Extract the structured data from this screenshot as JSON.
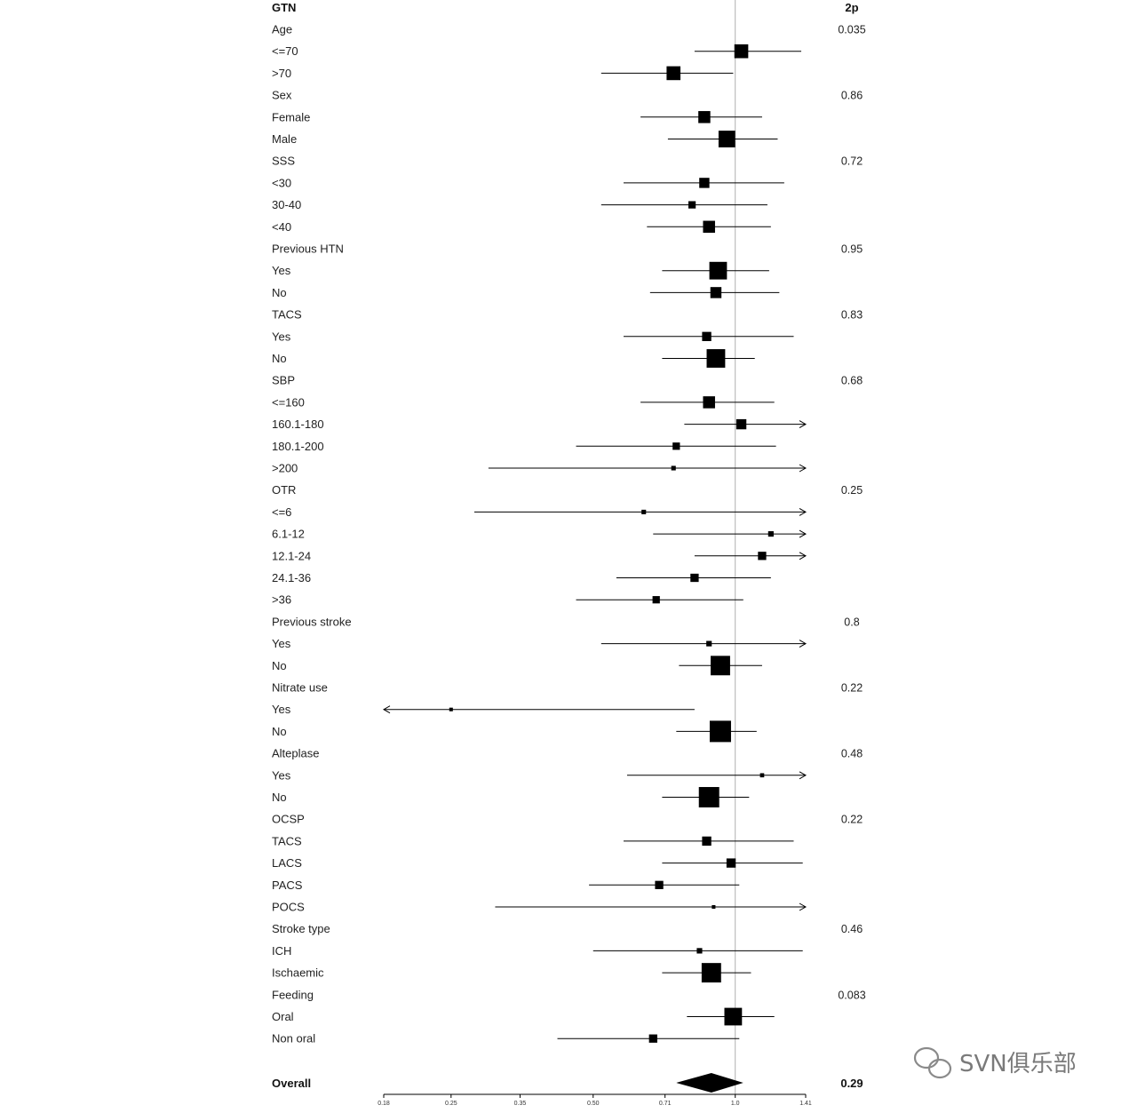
{
  "chart_data": {
    "type": "forest",
    "header": {
      "label": "GTN",
      "pvalue": "2p"
    },
    "x_axis": {
      "scale": "log",
      "ticks": [
        "0.18",
        "0.25",
        "0.35",
        "0.50",
        "0.71",
        "1.0",
        "1.41"
      ],
      "xlim": [
        0.18,
        1.41
      ],
      "reference_line": 1.0
    },
    "rows": [
      {
        "label": "Age",
        "kind": "group",
        "p": "0.035"
      },
      {
        "label": "<=70",
        "kind": "item",
        "est": 1.03,
        "lo": 0.82,
        "hi": 1.38,
        "w": 0.6
      },
      {
        "label": ">70",
        "kind": "item",
        "est": 0.74,
        "lo": 0.52,
        "hi": 0.99,
        "w": 0.6
      },
      {
        "label": "Sex",
        "kind": "group",
        "p": "0.86"
      },
      {
        "label": "Female",
        "kind": "item",
        "est": 0.86,
        "lo": 0.63,
        "hi": 1.14,
        "w": 0.5
      },
      {
        "label": "Male",
        "kind": "item",
        "est": 0.96,
        "lo": 0.72,
        "hi": 1.23,
        "w": 0.75
      },
      {
        "label": "SSS",
        "kind": "group",
        "p": "0.72"
      },
      {
        "label": "<30",
        "kind": "item",
        "est": 0.86,
        "lo": 0.58,
        "hi": 1.27,
        "w": 0.4
      },
      {
        "label": "30-40",
        "kind": "item",
        "est": 0.81,
        "lo": 0.52,
        "hi": 1.17,
        "w": 0.25
      },
      {
        "label": "<40",
        "kind": "item",
        "est": 0.88,
        "lo": 0.65,
        "hi": 1.19,
        "w": 0.5
      },
      {
        "label": "Previous HTN",
        "kind": "group",
        "p": "0.95"
      },
      {
        "label": "Yes",
        "kind": "item",
        "est": 0.92,
        "lo": 0.7,
        "hi": 1.18,
        "w": 0.8
      },
      {
        "label": "No",
        "kind": "item",
        "est": 0.91,
        "lo": 0.66,
        "hi": 1.24,
        "w": 0.45
      },
      {
        "label": "TACS",
        "kind": "group",
        "p": "0.83"
      },
      {
        "label": "Yes",
        "kind": "item",
        "est": 0.87,
        "lo": 0.58,
        "hi": 1.33,
        "w": 0.35
      },
      {
        "label": "No",
        "kind": "item",
        "est": 0.91,
        "lo": 0.7,
        "hi": 1.1,
        "w": 0.85
      },
      {
        "label": "SBP",
        "kind": "group",
        "p": "0.68"
      },
      {
        "label": "<=160",
        "kind": "item",
        "est": 0.88,
        "lo": 0.63,
        "hi": 1.21,
        "w": 0.5
      },
      {
        "label": "160.1-180",
        "kind": "item",
        "est": 1.03,
        "lo": 0.78,
        "hi": 1.41,
        "w": 0.4,
        "arrow_hi": true
      },
      {
        "label": "180.1-200",
        "kind": "item",
        "est": 0.75,
        "lo": 0.46,
        "hi": 1.22,
        "w": 0.25
      },
      {
        "label": ">200",
        "kind": "item",
        "est": 0.74,
        "lo": 0.3,
        "hi": 1.41,
        "w": 0.1,
        "arrow_hi": true
      },
      {
        "label": "OTR",
        "kind": "group",
        "p": "0.25"
      },
      {
        "label": "<=6",
        "kind": "item",
        "est": 0.64,
        "lo": 0.28,
        "hi": 1.41,
        "w": 0.1,
        "arrow_hi": true
      },
      {
        "label": "6.1-12",
        "kind": "item",
        "est": 1.19,
        "lo": 0.67,
        "hi": 1.41,
        "w": 0.15,
        "arrow_hi": true
      },
      {
        "label": "12.1-24",
        "kind": "item",
        "est": 1.14,
        "lo": 0.82,
        "hi": 1.41,
        "w": 0.3,
        "arrow_hi": true
      },
      {
        "label": "24.1-36",
        "kind": "item",
        "est": 0.82,
        "lo": 0.56,
        "hi": 1.19,
        "w": 0.3
      },
      {
        "label": ">36",
        "kind": "item",
        "est": 0.68,
        "lo": 0.46,
        "hi": 1.04,
        "w": 0.25
      },
      {
        "label": "Previous stroke",
        "kind": "group",
        "p": "0.8"
      },
      {
        "label": "Yes",
        "kind": "item",
        "est": 0.88,
        "lo": 0.52,
        "hi": 1.41,
        "w": 0.15,
        "arrow_hi": true
      },
      {
        "label": "No",
        "kind": "item",
        "est": 0.93,
        "lo": 0.76,
        "hi": 1.14,
        "w": 0.9
      },
      {
        "label": "Nitrate use",
        "kind": "group",
        "p": "0.22"
      },
      {
        "label": "Yes",
        "kind": "item",
        "est": 0.25,
        "lo": 0.18,
        "hi": 0.82,
        "w": 0.05,
        "arrow_lo": true
      },
      {
        "label": "No",
        "kind": "item",
        "est": 0.93,
        "lo": 0.75,
        "hi": 1.11,
        "w": 1.0
      },
      {
        "label": "Alteplase",
        "kind": "group",
        "p": "0.48"
      },
      {
        "label": "Yes",
        "kind": "item",
        "est": 1.14,
        "lo": 0.59,
        "hi": 1.41,
        "w": 0.08,
        "arrow_hi": true
      },
      {
        "label": "No",
        "kind": "item",
        "est": 0.88,
        "lo": 0.7,
        "hi": 1.07,
        "w": 0.95
      },
      {
        "label": "OCSP",
        "kind": "group",
        "p": "0.22"
      },
      {
        "label": "TACS",
        "kind": "item",
        "est": 0.87,
        "lo": 0.58,
        "hi": 1.33,
        "w": 0.35
      },
      {
        "label": "LACS",
        "kind": "item",
        "est": 0.98,
        "lo": 0.7,
        "hi": 1.39,
        "w": 0.35
      },
      {
        "label": "PACS",
        "kind": "item",
        "est": 0.69,
        "lo": 0.49,
        "hi": 1.02,
        "w": 0.3
      },
      {
        "label": "POCS",
        "kind": "item",
        "est": 0.9,
        "lo": 0.31,
        "hi": 1.41,
        "w": 0.05,
        "arrow_hi": true
      },
      {
        "label": "Stroke type",
        "kind": "group",
        "p": "0.46"
      },
      {
        "label": "ICH",
        "kind": "item",
        "est": 0.84,
        "lo": 0.5,
        "hi": 1.39,
        "w": 0.15
      },
      {
        "label": "Ischaemic",
        "kind": "item",
        "est": 0.89,
        "lo": 0.7,
        "hi": 1.08,
        "w": 0.9
      },
      {
        "label": "Feeding",
        "kind": "group",
        "p": "0.083"
      },
      {
        "label": "Oral",
        "kind": "item",
        "est": 0.99,
        "lo": 0.79,
        "hi": 1.21,
        "w": 0.8
      },
      {
        "label": "Non oral",
        "kind": "item",
        "est": 0.67,
        "lo": 0.42,
        "hi": 1.02,
        "w": 0.3
      }
    ],
    "overall": {
      "label": "Overall",
      "p": "0.29",
      "est": 0.89,
      "lo": 0.75,
      "hi": 1.04
    }
  },
  "watermark": {
    "text": "SVN俱乐部",
    "icon": "wechat-icon"
  },
  "colors": {
    "ink": "#000000",
    "reference_line": "#b0b0b0",
    "text": "#222222",
    "watermark": "#7a7a7a"
  }
}
